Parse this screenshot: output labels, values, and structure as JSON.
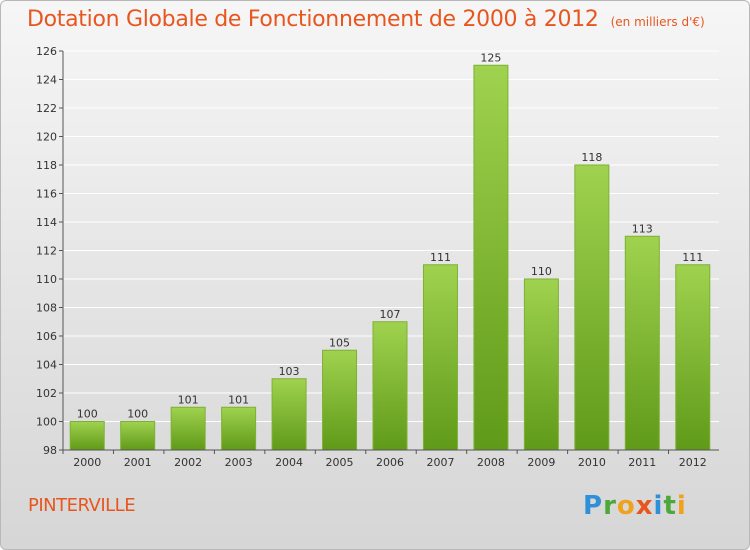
{
  "header": {
    "title": "Dotation Globale de Fonctionnement de 2000 à 2012",
    "subtitle": "(en milliers d'€)"
  },
  "footer": {
    "town": "PINTERVILLE",
    "logo_text": "Proxiti",
    "logo_letters": [
      {
        "ch": "P",
        "color": "#2f8fd8"
      },
      {
        "ch": "r",
        "color": "#4ca83a"
      },
      {
        "ch": "o",
        "color": "#f0a21d"
      },
      {
        "ch": "x",
        "color": "#e8561f"
      },
      {
        "ch": "i",
        "color": "#2f8fd8"
      },
      {
        "ch": "t",
        "color": "#4ca83a"
      },
      {
        "ch": "i",
        "color": "#f0a21d"
      }
    ]
  },
  "chart_data": {
    "type": "bar",
    "title": "Dotation Globale de Fonctionnement de 2000 à 2012",
    "subtitle": "(en milliers d'€)",
    "categories": [
      "2000",
      "2001",
      "2002",
      "2003",
      "2004",
      "2005",
      "2006",
      "2007",
      "2008",
      "2009",
      "2010",
      "2011",
      "2012"
    ],
    "values": [
      100,
      100,
      101,
      101,
      103,
      105,
      107,
      111,
      125,
      110,
      118,
      113,
      111
    ],
    "data_labels": [
      "100",
      "100",
      "101",
      "101",
      "103",
      "105",
      "107",
      "111",
      "125",
      "110",
      "118",
      "113",
      "111"
    ],
    "ylim": [
      98,
      126
    ],
    "yticks": [
      98,
      100,
      102,
      104,
      106,
      108,
      110,
      112,
      114,
      116,
      118,
      120,
      122,
      124,
      126
    ],
    "grid": true,
    "colors": {
      "bar_top": "#9fd24f",
      "bar_bottom": "#5f9a18",
      "bar_edge": "#7fb034",
      "grid": "#ffffff",
      "axis": "#555555"
    }
  }
}
